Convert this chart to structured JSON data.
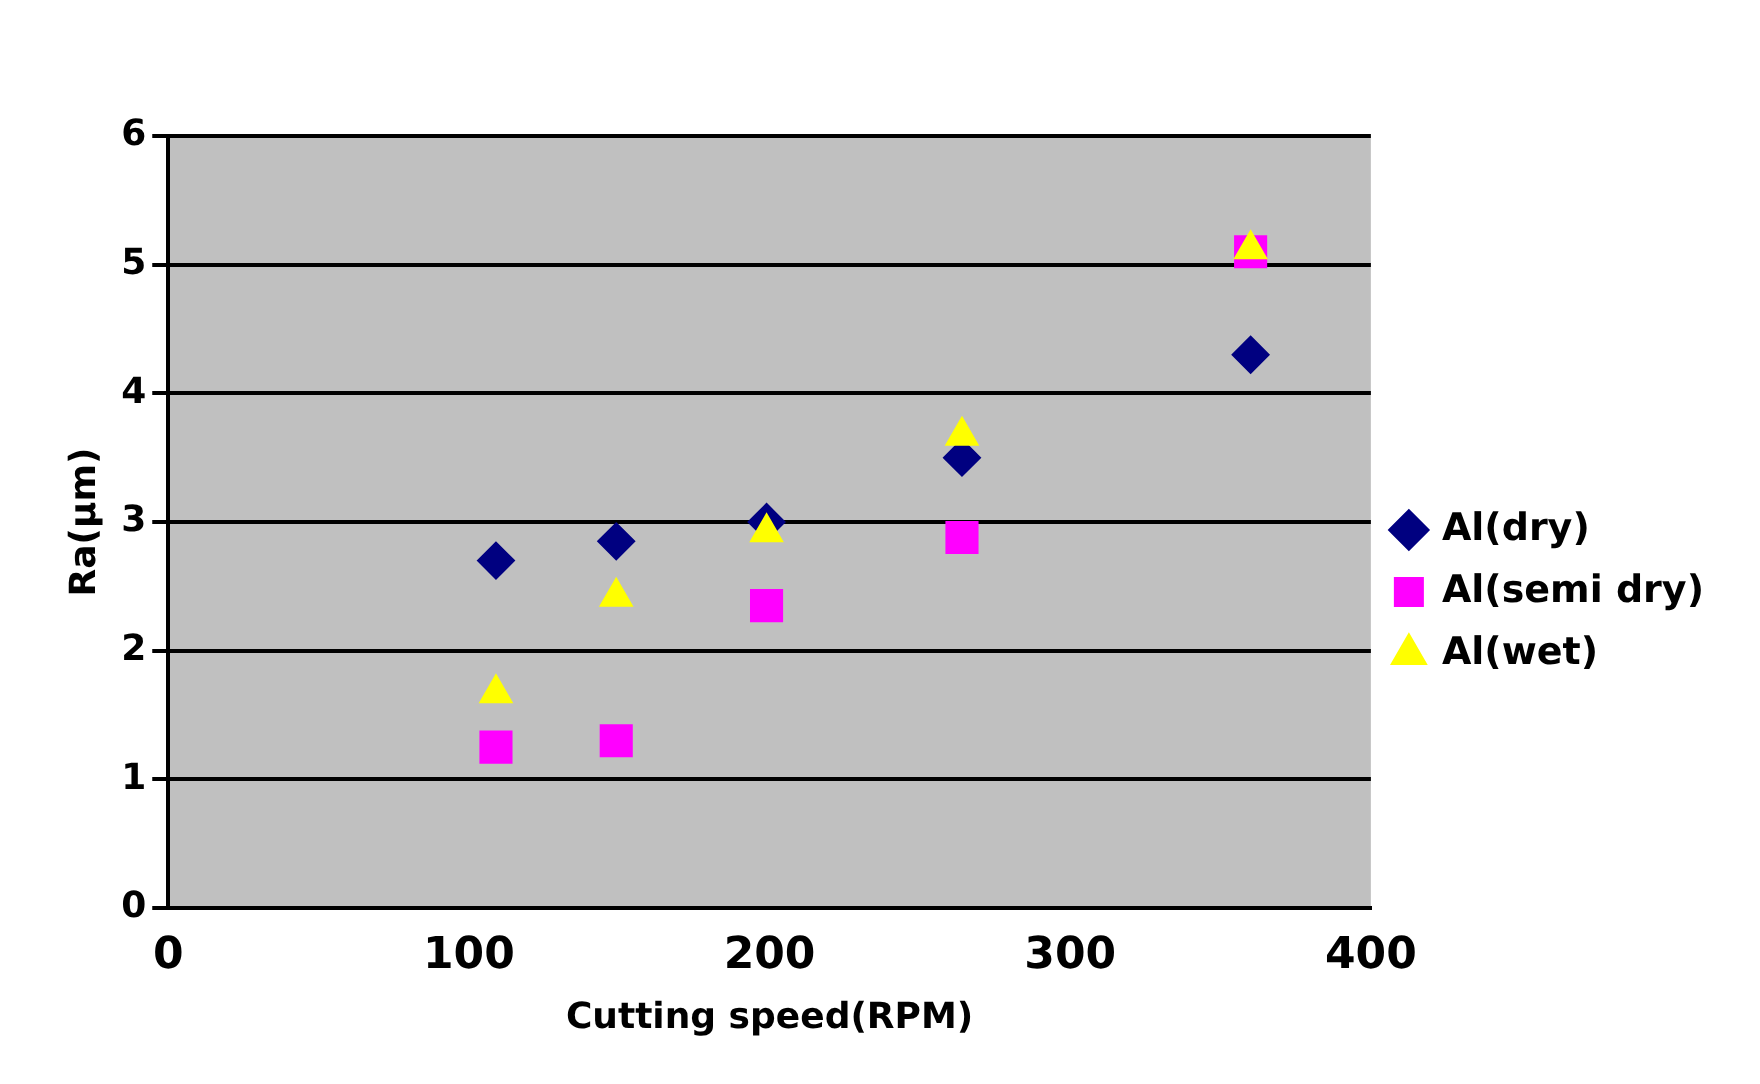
{
  "chart_data": {
    "type": "scatter",
    "xlabel": "Cutting speed(RPM)",
    "ylabel": "Ra(µm)",
    "x": [
      109,
      149,
      199,
      264,
      360
    ],
    "series": [
      {
        "name": "Al(dry)",
        "color": "#000080",
        "marker": "diamond",
        "values": [
          2.7,
          2.85,
          3.0,
          3.5,
          4.3
        ]
      },
      {
        "name": "Al(semi dry)",
        "color": "#ff00ff",
        "marker": "square",
        "values": [
          1.25,
          1.3,
          2.35,
          2.88,
          5.1
        ]
      },
      {
        "name": "Al(wet)",
        "color": "#ffff00",
        "marker": "triangle",
        "values": [
          1.67,
          2.42,
          2.92,
          3.67,
          5.12
        ]
      }
    ],
    "xlim": [
      0,
      400
    ],
    "xticks": [
      0,
      100,
      200,
      300,
      400
    ],
    "ylim": [
      0,
      6
    ],
    "yticks": [
      0,
      1,
      2,
      3,
      4,
      5,
      6
    ],
    "grid": "y",
    "legend": "right"
  }
}
